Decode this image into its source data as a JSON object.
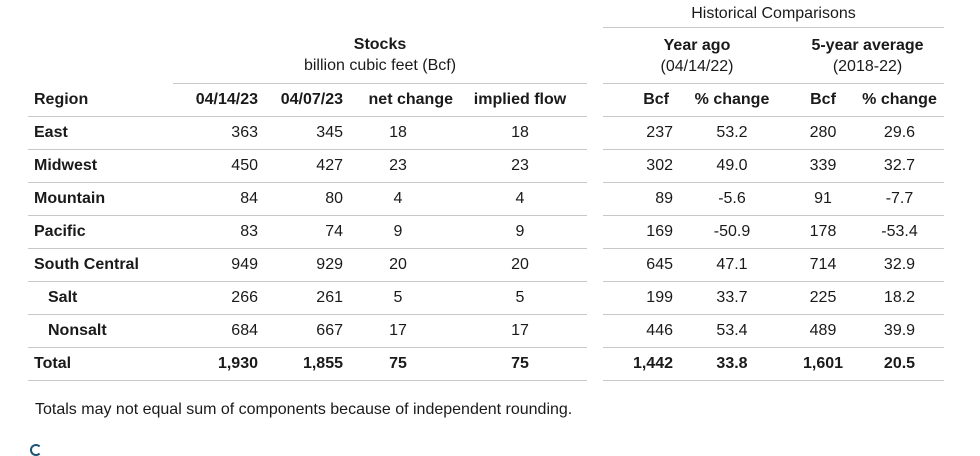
{
  "table": {
    "historical_title": "Historical Comparisons",
    "stocks_title": "Stocks",
    "stocks_subtitle": "billion cubic feet (Bcf)",
    "year_ago_title": "Year ago",
    "year_ago_subtitle": "(04/14/22)",
    "five_year_title": "5-year average",
    "five_year_subtitle": "(2018-22)",
    "columns": [
      "Region",
      "04/14/23",
      "04/07/23",
      "net change",
      "implied flow",
      "Bcf",
      "% change",
      "Bcf",
      "% change"
    ],
    "rows": [
      {
        "region": "East",
        "sub": false,
        "values": [
          "363",
          "345",
          "18",
          "18",
          "237",
          "53.2",
          "280",
          "29.6"
        ]
      },
      {
        "region": "Midwest",
        "sub": false,
        "values": [
          "450",
          "427",
          "23",
          "23",
          "302",
          "49.0",
          "339",
          "32.7"
        ]
      },
      {
        "region": "Mountain",
        "sub": false,
        "values": [
          "84",
          "80",
          "4",
          "4",
          "89",
          "-5.6",
          "91",
          "-7.7"
        ]
      },
      {
        "region": "Pacific",
        "sub": false,
        "values": [
          "83",
          "74",
          "9",
          "9",
          "169",
          "-50.9",
          "178",
          "-53.4"
        ]
      },
      {
        "region": "South Central",
        "sub": false,
        "values": [
          "949",
          "929",
          "20",
          "20",
          "645",
          "47.1",
          "714",
          "32.9"
        ]
      },
      {
        "region": "Salt",
        "sub": true,
        "values": [
          "266",
          "261",
          "5",
          "5",
          "199",
          "33.7",
          "225",
          "18.2"
        ]
      },
      {
        "region": "Nonsalt",
        "sub": true,
        "values": [
          "684",
          "667",
          "17",
          "17",
          "446",
          "53.4",
          "489",
          "39.9"
        ]
      },
      {
        "region": "Total",
        "sub": false,
        "total": true,
        "values": [
          "1,930",
          "1,855",
          "75",
          "75",
          "1,442",
          "33.8",
          "1,601",
          "20.5"
        ]
      }
    ]
  },
  "footnote": "Totals may not equal sum of components because of independent rounding.",
  "colors": {
    "text": "#1a1a1a",
    "rule": "#c8c8c8",
    "partial_glyph": "#1a5276"
  }
}
